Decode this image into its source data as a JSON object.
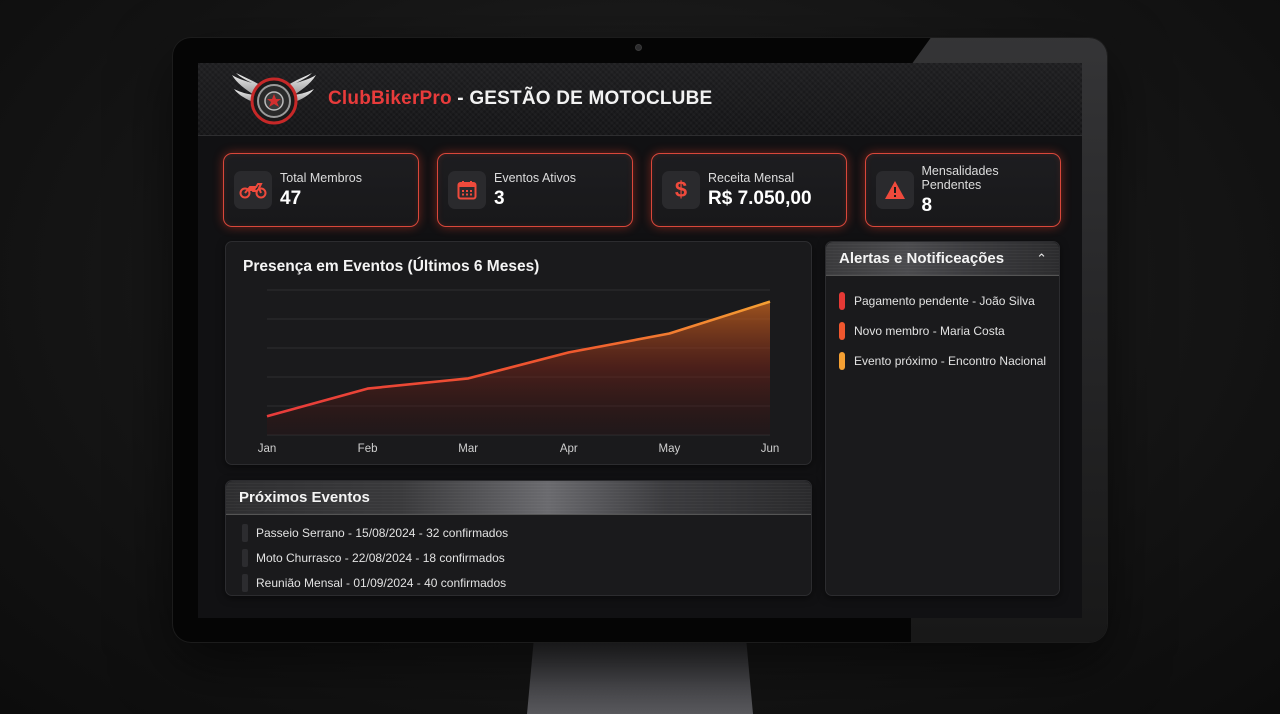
{
  "app": {
    "brand": "ClubBikerPro",
    "title_suffix": " - GESTÃO DE MOTOCLUBE",
    "logo_icon": "winged-wheel-logo"
  },
  "colors": {
    "accent_red": "#e83b3b",
    "accent_orange": "#f5a033",
    "card_border": "#d9473a"
  },
  "stats": [
    {
      "label": "Total Membros",
      "value": "47",
      "icon": "motorcycle-icon"
    },
    {
      "label": "Eventos Ativos",
      "value": "3",
      "icon": "calendar-icon"
    },
    {
      "label": "Receita Mensal",
      "value": "R$ 7.050,00",
      "icon": "dollar-icon"
    },
    {
      "label": "Mensalidades Pendentes",
      "value": "8",
      "icon": "warning-icon"
    }
  ],
  "chart": {
    "title": "Presença em Eventos (Últimos 6 Meses)"
  },
  "chart_data": {
    "type": "area",
    "title": "Presença em Eventos (Últimos 6 Meses)",
    "categories": [
      "Jan",
      "Feb",
      "Mar",
      "Apr",
      "May",
      "Jun"
    ],
    "values": [
      13,
      32,
      39,
      57,
      70,
      92
    ],
    "xlabel": "",
    "ylabel": "",
    "ylim": [
      0,
      100
    ],
    "grid": true,
    "gridlines": 6,
    "legend": "none",
    "line_gradient": [
      "#e83b3b",
      "#f5a033"
    ]
  },
  "alerts": {
    "title": "Alertas e Notificeações",
    "collapse_icon": "chevron-up-icon",
    "items": [
      {
        "text": "Pagamento pendente - João Silva",
        "color": "#e53935"
      },
      {
        "text": "Novo membro - Maria Costa",
        "color": "#f0572e"
      },
      {
        "text": "Evento próximo - Encontro Nacional",
        "color": "#f5a033"
      }
    ]
  },
  "events": {
    "title": "Próximos Eventos",
    "items": [
      {
        "text": "Passeio Serrano - 15/08/2024 - 32 confirmados"
      },
      {
        "text": "Moto Churrasco - 22/08/2024 - 18 confirmados"
      },
      {
        "text": "Reunião Mensal - 01/09/2024 - 40 confirmados"
      }
    ]
  }
}
